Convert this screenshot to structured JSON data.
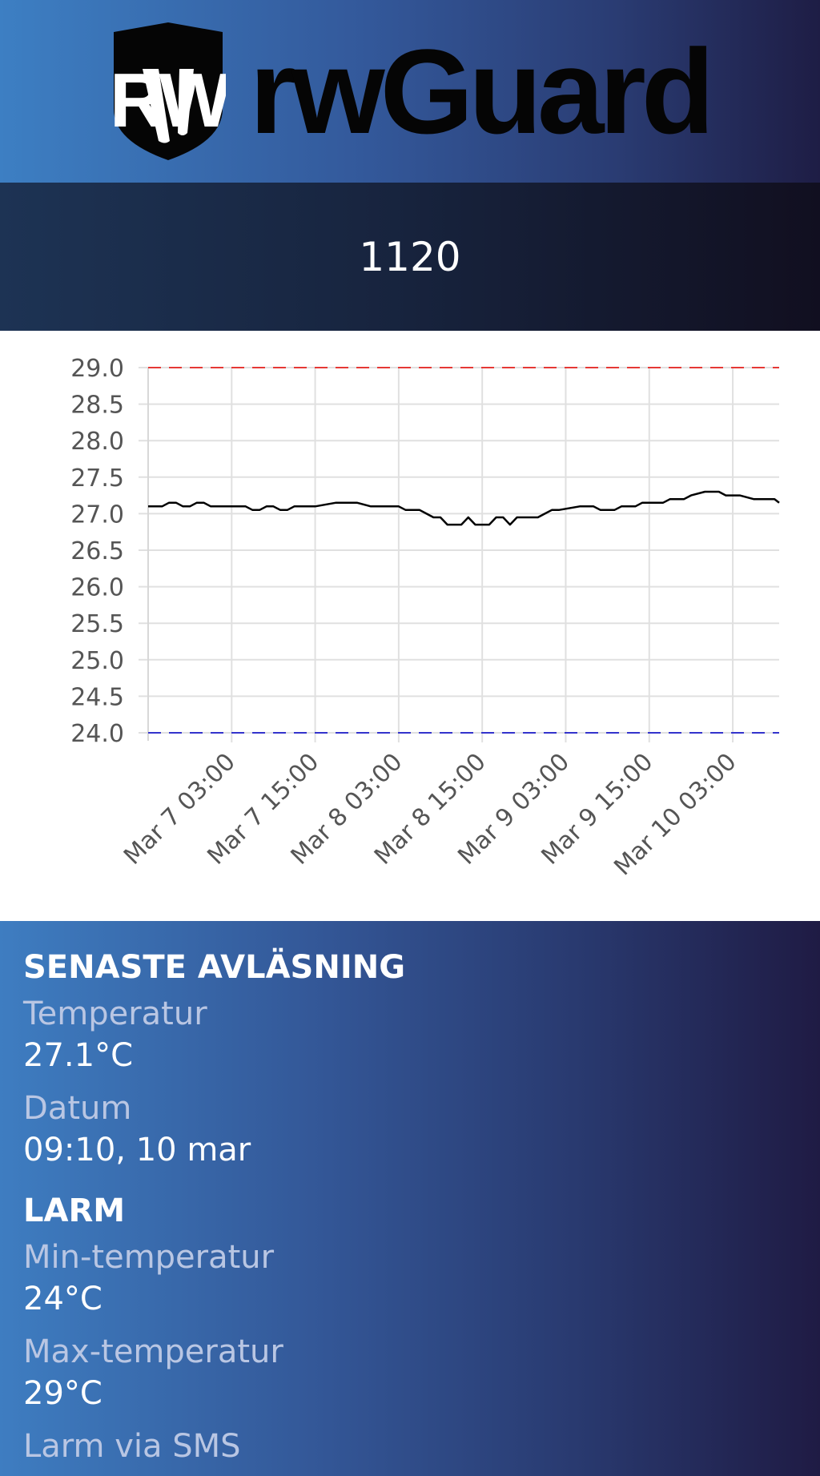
{
  "header": {
    "brand": "rwGuard",
    "logo_icon": "rw-shield-logo",
    "logo_letters": "RW"
  },
  "device": {
    "id": "1120"
  },
  "chart_data": {
    "type": "line",
    "title": "",
    "xlabel": "",
    "ylabel": "",
    "ylim": [
      24.0,
      29.0
    ],
    "yticks": [
      "29.0",
      "28.5",
      "28.0",
      "27.5",
      "27.0",
      "26.5",
      "26.0",
      "25.5",
      "25.0",
      "24.5",
      "24.0"
    ],
    "xlim": [
      "2024-03-06 15:00",
      "2024-03-10 09:40"
    ],
    "xticks": [
      {
        "label": "Mar 7 03:00",
        "t": "2024-03-07 03:00"
      },
      {
        "label": "Mar 7 15:00",
        "t": "2024-03-07 15:00"
      },
      {
        "label": "Mar 8 03:00",
        "t": "2024-03-08 03:00"
      },
      {
        "label": "Mar 8 15:00",
        "t": "2024-03-08 15:00"
      },
      {
        "label": "Mar 9 03:00",
        "t": "2024-03-09 03:00"
      },
      {
        "label": "Mar 9 15:00",
        "t": "2024-03-09 15:00"
      },
      {
        "label": "Mar 10 03:00",
        "t": "2024-03-10 03:00"
      }
    ],
    "grid": true,
    "thresholds": [
      {
        "value": 29.0,
        "color": "#e53935",
        "style": "dashed"
      },
      {
        "value": 24.0,
        "color": "#3333cc",
        "style": "dashed"
      }
    ],
    "series": [
      {
        "color": "#000000",
        "x": [
          "2024-03-06 15:00",
          "2024-03-06 17:00",
          "2024-03-06 18:00",
          "2024-03-06 19:00",
          "2024-03-06 20:00",
          "2024-03-06 21:00",
          "2024-03-06 22:00",
          "2024-03-06 23:00",
          "2024-03-07 00:00",
          "2024-03-07 01:00",
          "2024-03-07 03:00",
          "2024-03-07 05:00",
          "2024-03-07 06:00",
          "2024-03-07 07:00",
          "2024-03-07 08:00",
          "2024-03-07 09:00",
          "2024-03-07 10:00",
          "2024-03-07 11:00",
          "2024-03-07 12:00",
          "2024-03-07 14:00",
          "2024-03-07 15:00",
          "2024-03-07 18:00",
          "2024-03-07 19:00",
          "2024-03-07 21:00",
          "2024-03-07 23:00",
          "2024-03-08 01:00",
          "2024-03-08 03:00",
          "2024-03-08 04:00",
          "2024-03-08 06:00",
          "2024-03-08 07:00",
          "2024-03-08 08:00",
          "2024-03-08 09:00",
          "2024-03-08 10:00",
          "2024-03-08 11:00",
          "2024-03-08 12:00",
          "2024-03-08 13:00",
          "2024-03-08 14:00",
          "2024-03-08 15:00",
          "2024-03-08 16:00",
          "2024-03-08 17:00",
          "2024-03-08 18:00",
          "2024-03-08 19:00",
          "2024-03-08 20:00",
          "2024-03-08 22:00",
          "2024-03-08 23:00",
          "2024-03-09 00:00",
          "2024-03-09 01:00",
          "2024-03-09 02:00",
          "2024-03-09 05:00",
          "2024-03-09 06:00",
          "2024-03-09 07:00",
          "2024-03-09 08:00",
          "2024-03-09 09:00",
          "2024-03-09 10:00",
          "2024-03-09 11:00",
          "2024-03-09 13:00",
          "2024-03-09 14:00",
          "2024-03-09 15:00",
          "2024-03-09 17:00",
          "2024-03-09 18:00",
          "2024-03-09 19:00",
          "2024-03-09 20:00",
          "2024-03-09 21:00",
          "2024-03-09 23:00",
          "2024-03-10 00:00",
          "2024-03-10 01:00",
          "2024-03-10 02:00",
          "2024-03-10 03:00",
          "2024-03-10 04:00",
          "2024-03-10 06:00",
          "2024-03-10 09:00",
          "2024-03-10 09:40"
        ],
        "y": [
          27.1,
          27.1,
          27.15,
          27.15,
          27.1,
          27.1,
          27.15,
          27.15,
          27.1,
          27.1,
          27.1,
          27.1,
          27.05,
          27.05,
          27.1,
          27.1,
          27.05,
          27.05,
          27.1,
          27.1,
          27.1,
          27.15,
          27.15,
          27.15,
          27.1,
          27.1,
          27.1,
          27.05,
          27.05,
          27.0,
          26.95,
          26.95,
          26.85,
          26.85,
          26.85,
          26.95,
          26.85,
          26.85,
          26.85,
          26.95,
          26.95,
          26.85,
          26.95,
          26.95,
          26.95,
          27.0,
          27.05,
          27.05,
          27.1,
          27.1,
          27.1,
          27.05,
          27.05,
          27.05,
          27.1,
          27.1,
          27.15,
          27.15,
          27.15,
          27.2,
          27.2,
          27.2,
          27.25,
          27.3,
          27.3,
          27.3,
          27.25,
          27.25,
          27.25,
          27.2,
          27.2,
          27.15
        ]
      }
    ]
  },
  "latest": {
    "title": "SENASTE AVLÄSNING",
    "temp_label": "Temperatur",
    "temp_value": "27.1°C",
    "date_label": "Datum",
    "date_value": "09:10, 10 mar"
  },
  "alarm": {
    "title": "LARM",
    "min_label": "Min-temperatur",
    "min_value": "24°C",
    "max_label": "Max-temperatur",
    "max_value": "29°C",
    "sms_label": "Larm via SMS"
  }
}
